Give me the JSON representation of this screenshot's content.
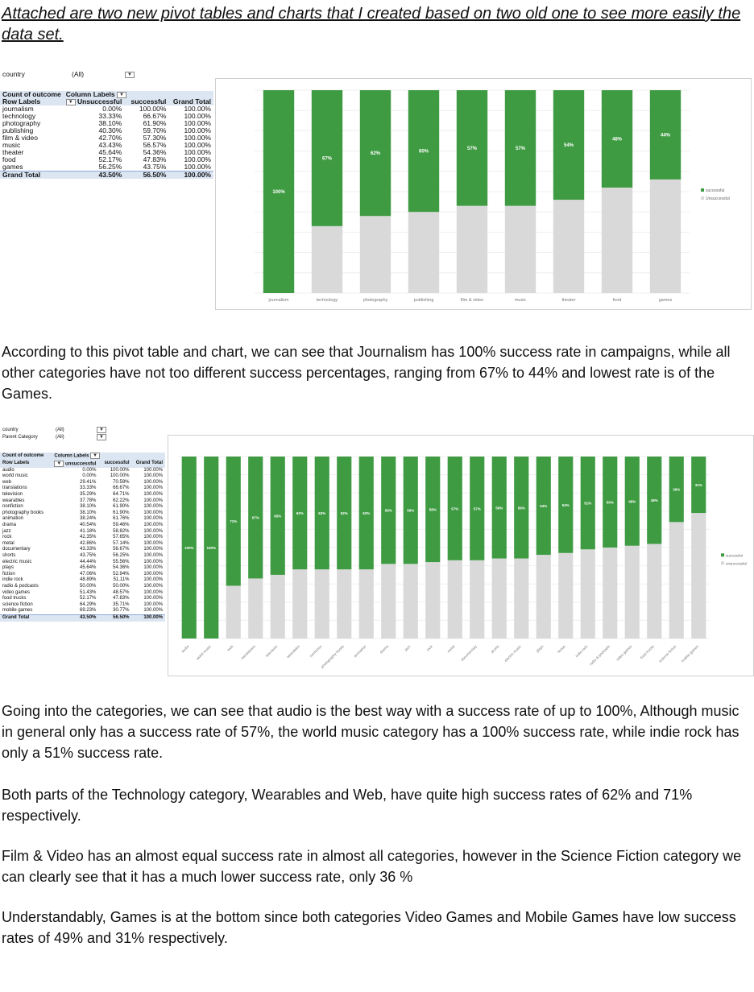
{
  "heading": "Attached are two new pivot tables and charts that I created based on two old one to see more easily the data set.",
  "pivot1": {
    "filters": [
      {
        "label": "country",
        "value": "(All)"
      }
    ],
    "header": {
      "measure": "Count of outcome",
      "col_labels": "Column Labels",
      "row_labels": "Row Labels",
      "col1": "Unsuccessful",
      "col2": "successful",
      "col3": "Grand Total"
    },
    "rows": [
      {
        "label": "journalism",
        "u": "0.00%",
        "s": "100.00%",
        "t": "100.00%"
      },
      {
        "label": "technology",
        "u": "33.33%",
        "s": "66.67%",
        "t": "100.00%"
      },
      {
        "label": "photography",
        "u": "38.10%",
        "s": "61.90%",
        "t": "100.00%"
      },
      {
        "label": "publishing",
        "u": "40.30%",
        "s": "59.70%",
        "t": "100.00%"
      },
      {
        "label": "film & video",
        "u": "42.70%",
        "s": "57.30%",
        "t": "100.00%"
      },
      {
        "label": "music",
        "u": "43.43%",
        "s": "56.57%",
        "t": "100.00%"
      },
      {
        "label": "theater",
        "u": "45.64%",
        "s": "54.36%",
        "t": "100.00%"
      },
      {
        "label": "food",
        "u": "52.17%",
        "s": "47.83%",
        "t": "100.00%"
      },
      {
        "label": "games",
        "u": "56.25%",
        "s": "43.75%",
        "t": "100.00%"
      }
    ],
    "total": {
      "label": "Grand Total",
      "u": "43.50%",
      "s": "56.50%",
      "t": "100.00%"
    }
  },
  "paragraph1": "According to this pivot table and chart, we can see that Journalism has 100% success rate in campaigns, while all other categories have not too different success percentages, ranging from 67% to 44% and lowest rate is of the Games.",
  "pivot2": {
    "filters": [
      {
        "label": "country",
        "value": "(All)"
      },
      {
        "label": "Parent Category",
        "value": "(All)"
      }
    ],
    "header": {
      "measure": "Count of outcome",
      "col_labels": "Column Labels",
      "row_labels": "Row Labels",
      "col1": "unsuccessful",
      "col2": "successful",
      "col3": "Grand Total"
    },
    "rows": [
      {
        "label": "audio",
        "u": "0.00%",
        "s": "100.00%",
        "t": "100.00%"
      },
      {
        "label": "world music",
        "u": "0.00%",
        "s": "100.00%",
        "t": "100.00%"
      },
      {
        "label": "web",
        "u": "29.41%",
        "s": "70.59%",
        "t": "100.00%"
      },
      {
        "label": "translations",
        "u": "33.33%",
        "s": "66.67%",
        "t": "100.00%"
      },
      {
        "label": "television",
        "u": "35.29%",
        "s": "64.71%",
        "t": "100.00%"
      },
      {
        "label": "wearables",
        "u": "37.78%",
        "s": "62.22%",
        "t": "100.00%"
      },
      {
        "label": "nonfiction",
        "u": "38.10%",
        "s": "61.90%",
        "t": "100.00%"
      },
      {
        "label": "photography books",
        "u": "38.10%",
        "s": "61.90%",
        "t": "100.00%"
      },
      {
        "label": "animation",
        "u": "38.24%",
        "s": "61.76%",
        "t": "100.00%"
      },
      {
        "label": "drama",
        "u": "40.54%",
        "s": "59.46%",
        "t": "100.00%"
      },
      {
        "label": "jazz",
        "u": "41.18%",
        "s": "58.82%",
        "t": "100.00%"
      },
      {
        "label": "rock",
        "u": "42.35%",
        "s": "57.65%",
        "t": "100.00%"
      },
      {
        "label": "metal",
        "u": "42.86%",
        "s": "57.14%",
        "t": "100.00%"
      },
      {
        "label": "documentary",
        "u": "43.33%",
        "s": "56.67%",
        "t": "100.00%"
      },
      {
        "label": "shorts",
        "u": "43.75%",
        "s": "56.25%",
        "t": "100.00%"
      },
      {
        "label": "electric music",
        "u": "44.44%",
        "s": "55.56%",
        "t": "100.00%"
      },
      {
        "label": "plays",
        "u": "45.64%",
        "s": "54.36%",
        "t": "100.00%"
      },
      {
        "label": "fiction",
        "u": "47.06%",
        "s": "52.94%",
        "t": "100.00%"
      },
      {
        "label": "indie rock",
        "u": "48.89%",
        "s": "51.11%",
        "t": "100.00%"
      },
      {
        "label": "radio & podcasts",
        "u": "50.00%",
        "s": "50.00%",
        "t": "100.00%"
      },
      {
        "label": "video games",
        "u": "51.43%",
        "s": "48.57%",
        "t": "100.00%"
      },
      {
        "label": "food trucks",
        "u": "52.17%",
        "s": "47.83%",
        "t": "100.00%"
      },
      {
        "label": "science fiction",
        "u": "64.29%",
        "s": "35.71%",
        "t": "100.00%"
      },
      {
        "label": "mobile games",
        "u": "69.23%",
        "s": "30.77%",
        "t": "100.00%"
      }
    ],
    "total": {
      "label": "Grand Total",
      "u": "43.50%",
      "s": "56.50%",
      "t": "100.00%"
    }
  },
  "paragraph2": "Going into the categories, we can see that audio is the best way with a success rate of up to 100%, Although music in general only has a success rate of 57%, the world music category has a 100% success rate, while indie rock has only a 51% success rate.",
  "paragraph3": "Both parts of the Technology category, Wearables and Web, have quite high success rates of 62% and 71% respectively.",
  "paragraph4": "Film & Video has an almost equal success rate in almost all categories, however in the Science Fiction category we can clearly see that it has a much lower success rate, only 36 %",
  "paragraph5": "Understandably, Games is at the bottom since both categories Video Games and Mobile Games have low success rates of 49% and 31% respectively.",
  "colors": {
    "successful": "#3e9b42",
    "unsuccessful": "#d9d9d9"
  },
  "chart_data": [
    {
      "type": "bar",
      "stacked": true,
      "categories": [
        "journalism",
        "technology",
        "photography",
        "publishing",
        "film & video",
        "music",
        "theater",
        "food",
        "games"
      ],
      "series": [
        {
          "name": "successful",
          "values": [
            100,
            67,
            62,
            60,
            57,
            57,
            54,
            48,
            44
          ]
        },
        {
          "name": "Unsuccessful",
          "values": [
            0,
            33,
            38,
            40,
            43,
            43,
            46,
            52,
            56
          ]
        }
      ],
      "data_labels": [
        "100%",
        "67%",
        "62%",
        "60%",
        "57%",
        "57%",
        "54%",
        "48%",
        "44%"
      ],
      "ylim": [
        0,
        100
      ],
      "legend": "right"
    },
    {
      "type": "bar",
      "stacked": true,
      "categories": [
        "audio",
        "world music",
        "web",
        "translations",
        "television",
        "wearables",
        "nonfiction",
        "photography books",
        "animation",
        "drama",
        "jazz",
        "rock",
        "metal",
        "documentary",
        "shorts",
        "electric music",
        "plays",
        "fiction",
        "indie rock",
        "radio & podcasts",
        "video games",
        "food trucks",
        "science fiction",
        "mobile games"
      ],
      "series": [
        {
          "name": "successful",
          "values": [
            100,
            100,
            71,
            67,
            65,
            62,
            62,
            62,
            62,
            59,
            59,
            58,
            57,
            57,
            56,
            56,
            54,
            53,
            51,
            50,
            49,
            48,
            36,
            31
          ]
        },
        {
          "name": "unsuccessful",
          "values": [
            0,
            0,
            29,
            33,
            35,
            38,
            38,
            38,
            38,
            41,
            41,
            42,
            43,
            43,
            44,
            44,
            46,
            47,
            49,
            50,
            51,
            52,
            64,
            69
          ]
        }
      ],
      "data_labels": [
        "100%",
        "100%",
        "71%",
        "67%",
        "65%",
        "62%",
        "62%",
        "62%",
        "62%",
        "59%",
        "59%",
        "58%",
        "57%",
        "57%",
        "56%",
        "56%",
        "54%",
        "53%",
        "51%",
        "50%",
        "49%",
        "48%",
        "36%",
        "31%"
      ],
      "ylim": [
        0,
        100
      ],
      "legend": "right"
    }
  ]
}
